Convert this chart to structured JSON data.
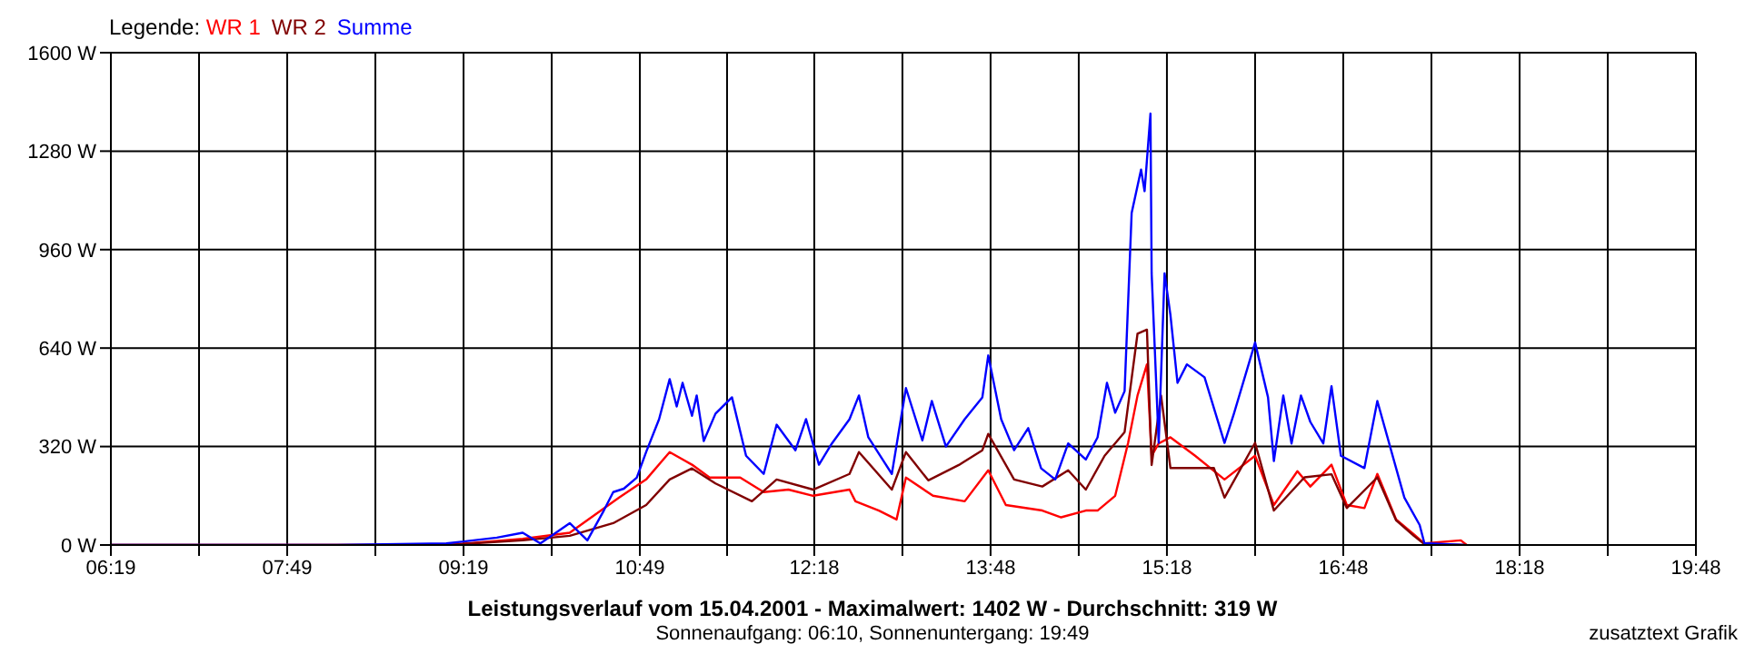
{
  "chart_data": {
    "type": "line",
    "title": "Leistungsverlauf vom 15.04.2001 - Maximalwert: 1402 W - Durchschnitt: 319 W",
    "subtitle": "Sonnenaufgang: 06:10, Sonnenuntergang: 19:49",
    "annotations": [
      "zusatztext Grafik"
    ],
    "legend_title": "Legende:",
    "legend": "top left",
    "grid": true,
    "xlim": [
      6.3167,
      19.8
    ],
    "xticks": [
      {
        "value": 6.3167,
        "label": "06:19"
      },
      {
        "value": 7.0667,
        "label": null
      },
      {
        "value": 7.8167,
        "label": "07:49"
      },
      {
        "value": 8.5667,
        "label": null
      },
      {
        "value": 9.3167,
        "label": "09:19"
      },
      {
        "value": 10.0667,
        "label": null
      },
      {
        "value": 10.8167,
        "label": "10:49"
      },
      {
        "value": 11.5583,
        "label": null
      },
      {
        "value": 12.3,
        "label": "12:18"
      },
      {
        "value": 13.05,
        "label": null
      },
      {
        "value": 13.8,
        "label": "13:48"
      },
      {
        "value": 14.55,
        "label": null
      },
      {
        "value": 15.3,
        "label": "15:18"
      },
      {
        "value": 16.05,
        "label": null
      },
      {
        "value": 16.8,
        "label": "16:48"
      },
      {
        "value": 17.55,
        "label": null
      },
      {
        "value": 18.3,
        "label": "18:18"
      },
      {
        "value": 19.05,
        "label": null
      },
      {
        "value": 19.8,
        "label": "19:48"
      }
    ],
    "ylim": [
      0,
      1600
    ],
    "yticks": [
      {
        "value": 0,
        "label": "0 W"
      },
      {
        "value": 320,
        "label": "320 W"
      },
      {
        "value": 640,
        "label": "640 W"
      },
      {
        "value": 960,
        "label": "960 W"
      },
      {
        "value": 1280,
        "label": "1280 W"
      },
      {
        "value": 1600,
        "label": "1600 W"
      }
    ],
    "series": [
      {
        "name": "WR 1",
        "color": "#ff0000",
        "x": [
          6.32,
          9.17,
          9.82,
          10.22,
          10.64,
          10.87,
          11.07,
          11.26,
          11.41,
          11.67,
          11.87,
          12.08,
          12.29,
          12.6,
          12.65,
          12.85,
          13.0,
          13.08,
          13.31,
          13.58,
          13.78,
          13.93,
          14.24,
          14.4,
          14.61,
          14.71,
          14.86,
          14.97,
          15.05,
          15.13,
          15.17,
          15.23,
          15.33,
          15.54,
          15.79,
          16.05,
          16.21,
          16.41,
          16.52,
          16.7,
          16.83,
          16.98,
          17.09,
          17.25,
          17.4,
          17.49,
          17.8,
          17.85
        ],
        "values": [
          0,
          0,
          20,
          40,
          154,
          213,
          302,
          261,
          219,
          219,
          172,
          180,
          160,
          180,
          142,
          112,
          83,
          219,
          160,
          142,
          243,
          130,
          112,
          90,
          112,
          112,
          160,
          332,
          486,
          587,
          290,
          330,
          350,
          290,
          213,
          290,
          130,
          240,
          190,
          261,
          130,
          120,
          231,
          83,
          35,
          5,
          15,
          0
        ]
      },
      {
        "name": "WR 2",
        "color": "#800000",
        "x": [
          6.32,
          9.17,
          9.82,
          10.22,
          10.59,
          10.87,
          11.07,
          11.26,
          11.46,
          11.77,
          11.98,
          12.29,
          12.6,
          12.68,
          12.96,
          13.08,
          13.27,
          13.53,
          13.73,
          13.78,
          14.0,
          14.24,
          14.46,
          14.61,
          14.77,
          14.94,
          15.05,
          15.13,
          15.17,
          15.25,
          15.33,
          15.7,
          15.79,
          16.05,
          16.21,
          16.47,
          16.7,
          16.83,
          17.09,
          17.25,
          17.4,
          17.49,
          17.85
        ],
        "values": [
          0,
          0,
          15,
          30,
          71,
          130,
          213,
          249,
          200,
          142,
          213,
          180,
          231,
          302,
          180,
          302,
          210,
          260,
          308,
          361,
          213,
          190,
          243,
          180,
          290,
          367,
          687,
          700,
          260,
          486,
          250,
          250,
          154,
          332,
          112,
          220,
          230,
          120,
          220,
          80,
          30,
          3,
          0
        ]
      },
      {
        "name": "Summe",
        "color": "#0000ff",
        "x": [
          6.32,
          8.24,
          9.17,
          9.6,
          9.82,
          9.97,
          10.22,
          10.37,
          10.51,
          10.59,
          10.68,
          10.79,
          10.87,
          10.98,
          11.07,
          11.13,
          11.18,
          11.26,
          11.3,
          11.36,
          11.46,
          11.6,
          11.72,
          11.87,
          11.98,
          12.14,
          12.23,
          12.34,
          12.45,
          12.6,
          12.68,
          12.76,
          12.96,
          13.08,
          13.22,
          13.3,
          13.42,
          13.58,
          13.73,
          13.78,
          13.89,
          14.0,
          14.12,
          14.23,
          14.35,
          14.46,
          14.61,
          14.71,
          14.79,
          14.86,
          14.94,
          15.0,
          15.08,
          15.11,
          15.16,
          15.17,
          15.23,
          15.28,
          15.33,
          15.39,
          15.47,
          15.62,
          15.79,
          15.87,
          16.05,
          16.16,
          16.21,
          16.29,
          16.36,
          16.44,
          16.52,
          16.63,
          16.7,
          16.78,
          16.98,
          17.09,
          17.25,
          17.32,
          17.45,
          17.49,
          17.83
        ],
        "values": [
          0,
          0,
          5,
          24,
          40,
          5,
          71,
          15,
          112,
          172,
          183,
          219,
          302,
          409,
          539,
          450,
          527,
          420,
          486,
          338,
          427,
          480,
          290,
          231,
          391,
          308,
          409,
          261,
          330,
          409,
          486,
          350,
          231,
          510,
          340,
          468,
          320,
          409,
          480,
          616,
          409,
          308,
          380,
          249,
          213,
          330,
          278,
          350,
          527,
          430,
          500,
          1079,
          1220,
          1150,
          1402,
          883,
          332,
          883,
          747,
          527,
          587,
          545,
          332,
          427,
          658,
          480,
          273,
          486,
          330,
          486,
          400,
          330,
          516,
          290,
          250,
          468,
          249,
          154,
          65,
          6,
          0
        ]
      }
    ]
  }
}
